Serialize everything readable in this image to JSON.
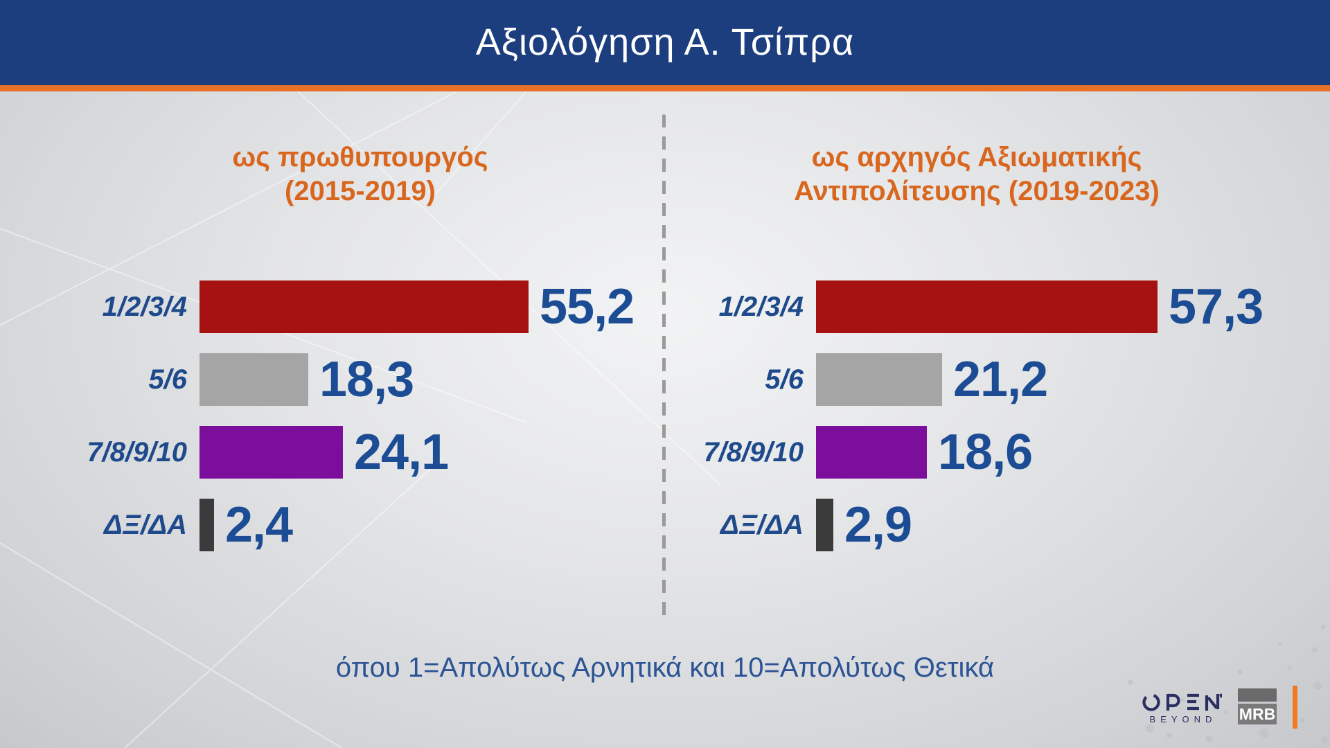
{
  "header": {
    "title": "Αξιολόγηση Α. Τσίπρα",
    "bar_color": "#1c3e7e",
    "rule_color": "#e87127"
  },
  "footnote": {
    "text": "όπου 1=Απολύτως Αρνητικά και 10=Απολύτως Θετικά"
  },
  "chart_data": [
    {
      "type": "bar",
      "orientation": "horizontal",
      "title": "ως πρωθυπουργός (2015-2019)",
      "title_lines": [
        "ως πρωθυπουργός",
        "(2015-2019)"
      ],
      "categories": [
        "1/2/3/4",
        "5/6",
        "7/8/9/10",
        "ΔΞ/ΔΑ"
      ],
      "values": [
        55.2,
        18.3,
        24.1,
        2.4
      ],
      "value_labels": [
        "55,2",
        "18,3",
        "24,1",
        "2,4"
      ],
      "bar_keys": [
        "score-1-4",
        "score-5-6",
        "score-7-10",
        "dk-na"
      ],
      "bar_colors": [
        "#a61111",
        "#a5a5a5",
        "#7b0f9b",
        "#3b3b3b"
      ],
      "xlim": [
        0,
        60
      ],
      "grid": false,
      "legend": "none"
    },
    {
      "type": "bar",
      "orientation": "horizontal",
      "title": "ως αρχηγός Αξιωματικής Αντιπολίτευσης (2019-2023)",
      "title_lines": [
        "ως αρχηγός Αξιωματικής",
        "Αντιπολίτευσης (2019-2023)"
      ],
      "categories": [
        "1/2/3/4",
        "5/6",
        "7/8/9/10",
        "ΔΞ/ΔΑ"
      ],
      "values": [
        57.3,
        21.2,
        18.6,
        2.9
      ],
      "value_labels": [
        "57,3",
        "21,2",
        "18,6",
        "2,9"
      ],
      "bar_keys": [
        "score-1-4",
        "score-5-6",
        "score-7-10",
        "dk-na"
      ],
      "bar_colors": [
        "#a61111",
        "#a5a5a5",
        "#7b0f9b",
        "#3b3b3b"
      ],
      "xlim": [
        0,
        60
      ],
      "grid": false,
      "legend": "none"
    }
  ],
  "style": {
    "heading_color": "#d9661e",
    "label_color": "#1e4a8c",
    "value_color": "#1c4c94",
    "divider_color": "#9a9a9a",
    "background_center": "#f2f3f4",
    "background_edge": "#c6c8cb"
  },
  "branding": {
    "open_label": "OPEN",
    "open_sub_label": "BEYOND",
    "open_color": "#2a2e60",
    "mrb_label": "MRB",
    "mrb_gray_top": "#6a6a6a",
    "mrb_gray_bottom": "#7a7a7a",
    "accent_tick_color": "#f07b24"
  }
}
